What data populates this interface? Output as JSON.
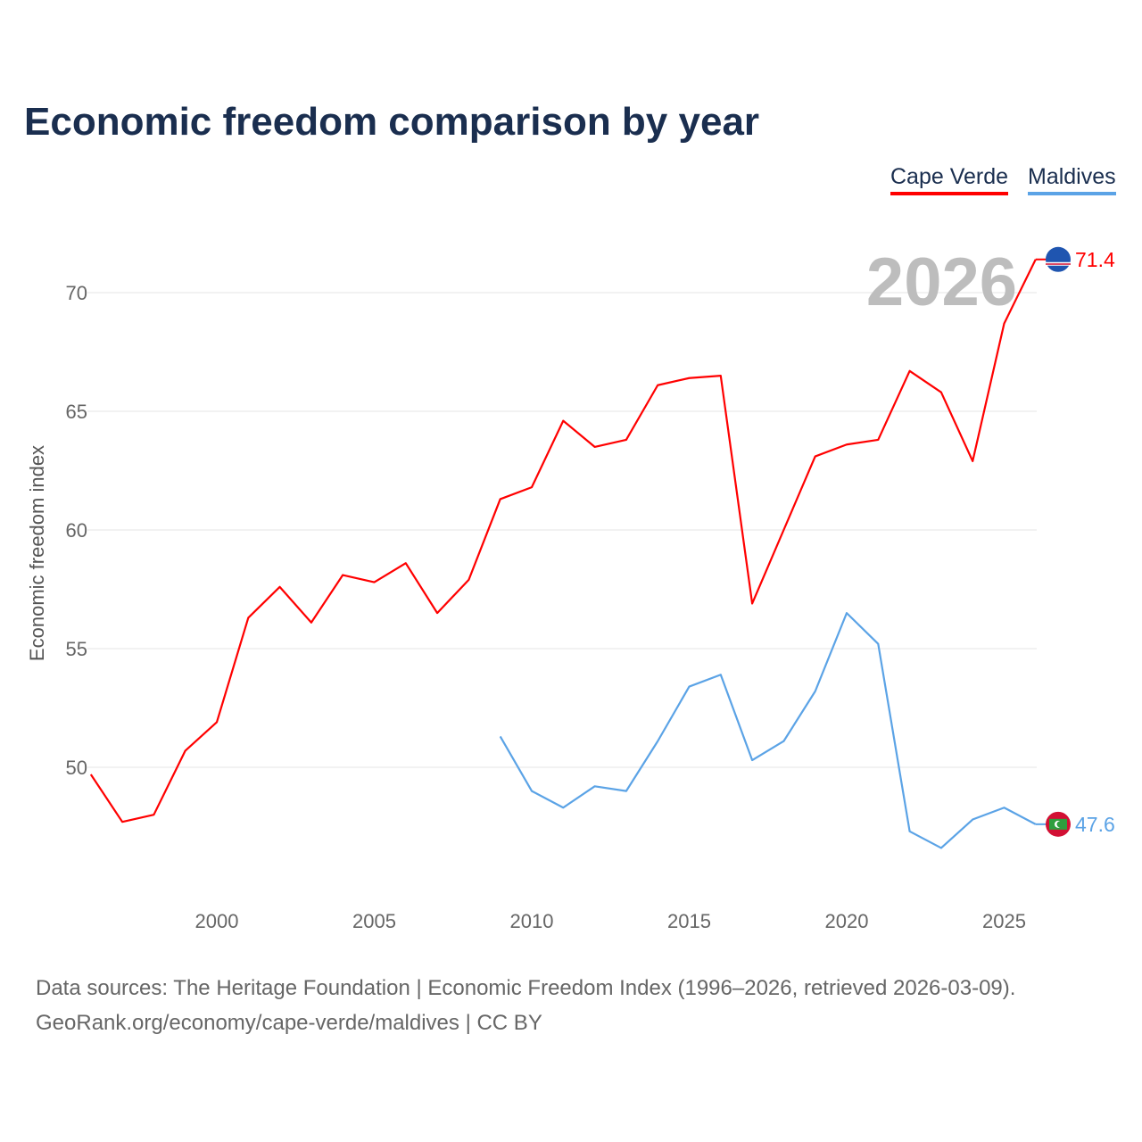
{
  "chart_data": {
    "type": "line",
    "title": "Economic freedom comparison by year",
    "ylabel": "Economic freedom index",
    "xlabel": "",
    "ylim": [
      44.5,
      72
    ],
    "xlim": [
      1996,
      2026
    ],
    "yticks": [
      50,
      55,
      60,
      65,
      70
    ],
    "xticks": [
      2000,
      2005,
      2010,
      2015,
      2020,
      2025
    ],
    "grid": true,
    "legend_position": "top-right",
    "year_label": "2026",
    "series": [
      {
        "name": "Cape Verde",
        "color": "#ff0000",
        "end_label": "71.4",
        "x": [
          1996,
          1997,
          1998,
          1999,
          2000,
          2001,
          2002,
          2003,
          2004,
          2005,
          2006,
          2007,
          2008,
          2009,
          2010,
          2011,
          2012,
          2013,
          2014,
          2015,
          2016,
          2017,
          2018,
          2019,
          2020,
          2021,
          2022,
          2023,
          2024,
          2025,
          2026
        ],
        "y": [
          49.7,
          47.7,
          48.0,
          50.7,
          51.9,
          56.3,
          57.6,
          56.1,
          58.1,
          57.8,
          58.6,
          56.5,
          57.9,
          61.3,
          61.8,
          64.6,
          63.5,
          63.8,
          66.1,
          66.4,
          66.5,
          56.9,
          60.0,
          63.1,
          63.6,
          63.8,
          66.7,
          65.8,
          62.9,
          68.7,
          71.4
        ]
      },
      {
        "name": "Maldives",
        "color": "#5ba3e6",
        "end_label": "47.6",
        "x": [
          2009,
          2010,
          2011,
          2012,
          2013,
          2014,
          2015,
          2016,
          2017,
          2018,
          2019,
          2020,
          2021,
          2022,
          2023,
          2024,
          2025,
          2026
        ],
        "y": [
          51.3,
          49.0,
          48.3,
          49.2,
          49.0,
          51.1,
          53.4,
          53.9,
          50.3,
          51.1,
          53.2,
          56.5,
          55.2,
          47.3,
          46.6,
          47.8,
          48.3,
          47.6
        ]
      }
    ]
  },
  "source_line1": "Data sources: The Heritage Foundation | Economic Freedom Index (1996–2026, retrieved 2026-03-09).",
  "source_line2": "GeoRank.org/economy/cape-verde/maldives | CC BY"
}
